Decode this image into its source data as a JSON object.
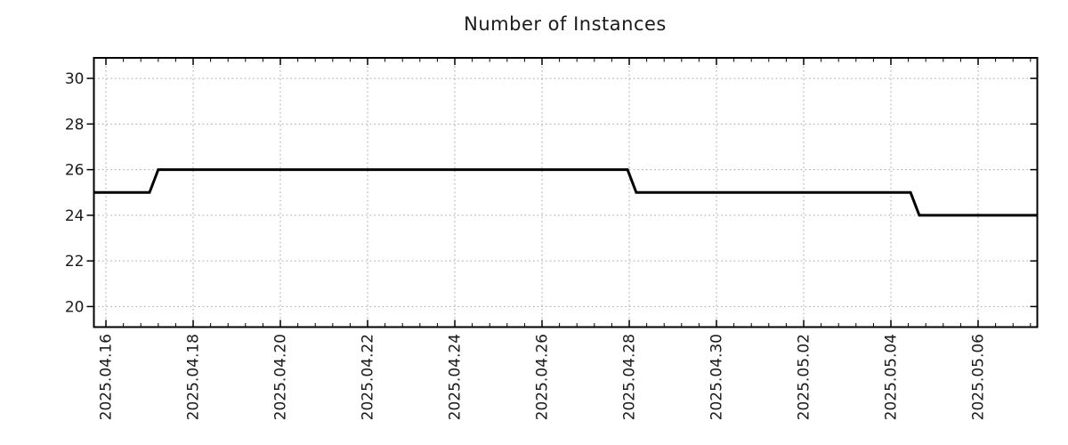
{
  "page": {
    "background_color": "#ffffff"
  },
  "chart_data": {
    "type": "line",
    "line_style": "step-like sampled time series",
    "title": "Number of Instances",
    "xlabel": "",
    "ylabel": "",
    "legend": {
      "show": false
    },
    "grid": {
      "show": true,
      "style": "dotted",
      "color": "#a0a0a0"
    },
    "x_axis": {
      "tick_labels": [
        "2025.04.16",
        "2025.04.18",
        "2025.04.20",
        "2025.04.22",
        "2025.04.24",
        "2025.04.26",
        "2025.04.28",
        "2025.04.30",
        "2025.05.02",
        "2025.05.04",
        "2025.05.06"
      ],
      "tick_positions_days": [
        0,
        2,
        4,
        6,
        8,
        10,
        12,
        14,
        16,
        18,
        20
      ],
      "minor_tick_interval_days": 0.4,
      "xlim_days": [
        -0.276,
        21.357
      ],
      "days_origin": "2025.04.16",
      "label_rotation_deg": 90
    },
    "y_axis": {
      "tick_labels": [
        "20",
        "22",
        "24",
        "26",
        "28",
        "30"
      ],
      "ticks": [
        20,
        22,
        24,
        26,
        28,
        30
      ],
      "ylim": [
        19.1,
        30.9
      ]
    },
    "series": [
      {
        "name": "Number of Instances",
        "color": "#000000",
        "line_width": 3,
        "points_unit": "days since 2025.04.16",
        "points": [
          [
            -0.276,
            25
          ],
          [
            1.0,
            25
          ],
          [
            1.2,
            26
          ],
          [
            11.96,
            26
          ],
          [
            12.16,
            25
          ],
          [
            18.45,
            25
          ],
          [
            18.65,
            24
          ],
          [
            21.357,
            24
          ]
        ]
      }
    ],
    "readings": [
      {
        "date": "2025.04.16",
        "value": 25
      },
      {
        "date": "2025.04.17",
        "value": 26
      },
      {
        "date": "2025.04.28",
        "value": 25
      },
      {
        "date": "2025.05.04",
        "value": 24
      }
    ],
    "colors": {
      "line": "#000000",
      "text": "#1a1a1a",
      "border": "#000000",
      "grid": "#a0a0a0"
    }
  }
}
